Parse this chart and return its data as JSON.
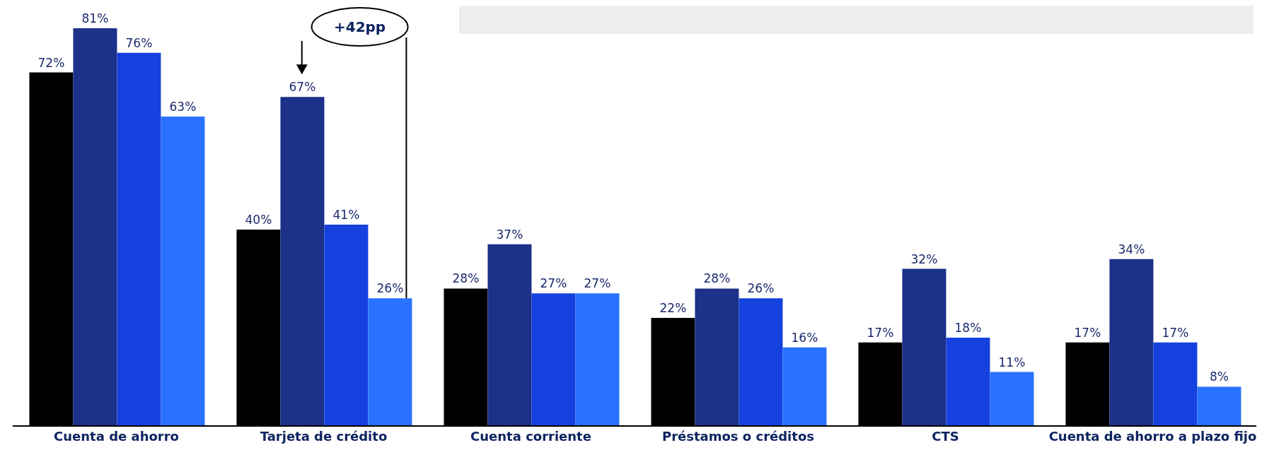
{
  "chart_data": {
    "type": "bar",
    "categories": [
      "Cuenta de ahorro",
      "Tarjeta de crédito",
      "Cuenta corriente",
      "Préstamos o créditos",
      "CTS",
      "Cuenta de ahorro a plazo fijo"
    ],
    "series": [
      {
        "color": "#000000",
        "values": [
          72,
          40,
          28,
          22,
          17,
          17
        ],
        "value_labels": [
          "72%",
          "40%",
          "28%",
          "22%",
          "17%",
          "17%"
        ]
      },
      {
        "color": "#1b318a",
        "values": [
          81,
          67,
          37,
          28,
          32,
          34
        ],
        "value_labels": [
          "81%",
          "67%",
          "37%",
          "28%",
          "32%",
          "34%"
        ]
      },
      {
        "color": "#1541de",
        "values": [
          76,
          41,
          27,
          26,
          18,
          17
        ],
        "value_labels": [
          "76%",
          "41%",
          "27%",
          "26%",
          "18%",
          "17%"
        ]
      },
      {
        "color": "#2872ff",
        "values": [
          63,
          26,
          27,
          16,
          11,
          8
        ],
        "value_labels": [
          "63%",
          "26%",
          "27%",
          "16%",
          "11%",
          "8%"
        ]
      }
    ],
    "annotations": [
      "+42pp"
    ]
  }
}
